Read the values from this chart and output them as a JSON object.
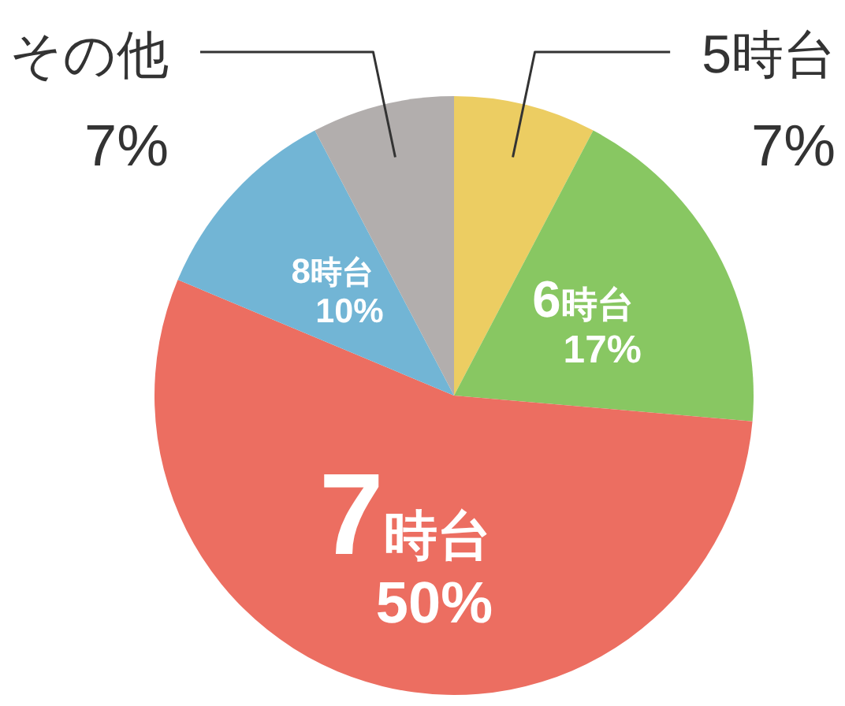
{
  "chart_data": {
    "type": "pie",
    "categories": [
      "5時台",
      "6時台",
      "7時台",
      "8時台",
      "その他"
    ],
    "values": [
      7,
      17,
      50,
      10,
      7
    ],
    "colors": [
      "#eccd62",
      "#88c762",
      "#ec6e61",
      "#72b5d5",
      "#b2aead"
    ],
    "value_labels": [
      "7%",
      "17%",
      "50%",
      "10%",
      "7%"
    ]
  }
}
